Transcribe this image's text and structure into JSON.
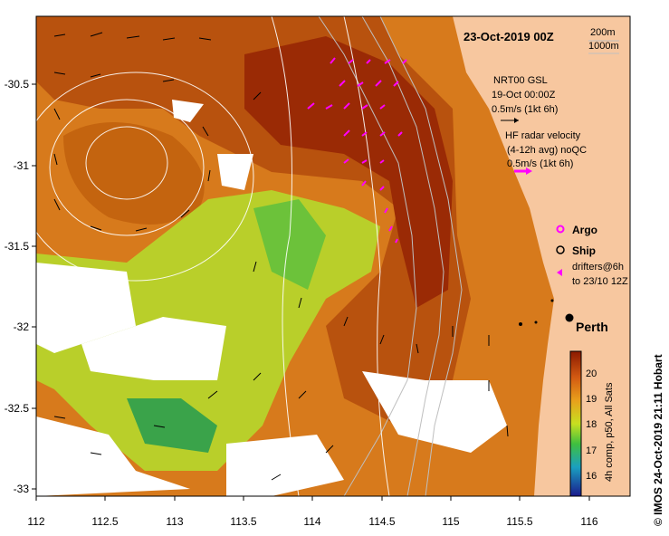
{
  "title": "23-Oct-2019 00Z",
  "depth_legend": [
    "200m",
    "1000m"
  ],
  "annotations": {
    "gsl": [
      "NRT00 GSL",
      "19-Oct 00:00Z",
      "0.5m/s (1kt 6h)"
    ],
    "hf": [
      "HF radar velocity",
      "(4-12h avg) noQC",
      "0.5m/s (1kt 6h)"
    ],
    "legend": {
      "argo": "Argo",
      "ship": "Ship",
      "drifters": [
        "drifters@6h",
        "to 23/10 12Z"
      ]
    },
    "place": "Perth"
  },
  "colorbar": {
    "ticks": [
      "20",
      "19",
      "18",
      "17",
      "16"
    ],
    "label": "4h comp, p50, All Sats"
  },
  "credit": "© IMOS 24-Oct-2019 21:11 Hobart",
  "axes": {
    "x_ticks": [
      "112",
      "112.5",
      "113",
      "113.5",
      "114",
      "114.5",
      "115",
      "115.5",
      "116"
    ],
    "y_ticks": [
      "-30.5",
      "-31",
      "-31.5",
      "-32",
      "-32.5",
      "-33"
    ]
  },
  "colors": {
    "land": "#f7c79f",
    "warm": "#b03a06",
    "cool": "#3aa34a",
    "hf": "#ff00ff",
    "depth": "#bfbfbf"
  }
}
